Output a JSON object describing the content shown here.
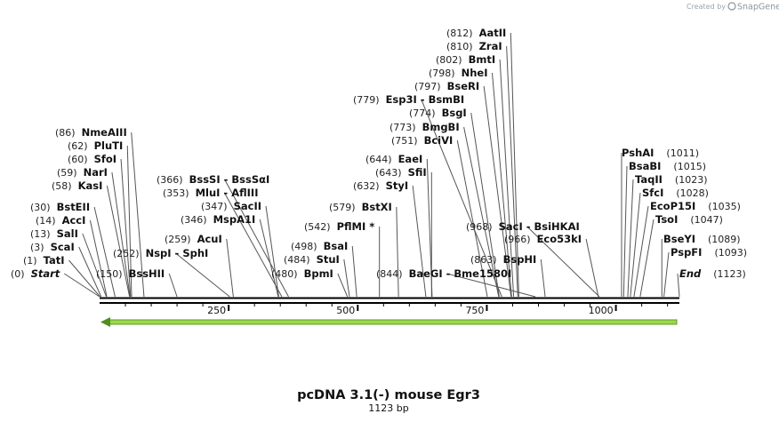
{
  "watermark": {
    "created_by": "Created by",
    "brand": "SnapGene"
  },
  "sequence": {
    "name": "pcDNA 3.1(-) mouse Egr3",
    "length_label": "1123 bp",
    "length": 1123
  },
  "axis": {
    "ticks": [
      "250",
      "500",
      "750",
      "1000"
    ]
  },
  "feature_arrow": {
    "start": 1123,
    "end": 1,
    "direction": "reverse",
    "color": "#9ad84f"
  },
  "sites": [
    {
      "pos": 0,
      "label": "(0)",
      "name": "Start",
      "italic": true
    },
    {
      "pos": 1,
      "label": "(1)",
      "name": "TatI"
    },
    {
      "pos": 3,
      "label": "(3)",
      "name": "ScaI"
    },
    {
      "pos": 13,
      "label": "(13)",
      "name": "SalI"
    },
    {
      "pos": 14,
      "label": "(14)",
      "name": "AccI"
    },
    {
      "pos": 30,
      "label": "(30)",
      "name": "BstEII"
    },
    {
      "pos": 58,
      "label": "(58)",
      "name": "KasI"
    },
    {
      "pos": 59,
      "label": "(59)",
      "name": "NarI"
    },
    {
      "pos": 60,
      "label": "(60)",
      "name": "SfoI"
    },
    {
      "pos": 62,
      "label": "(62)",
      "name": "PluTI"
    },
    {
      "pos": 86,
      "label": "(86)",
      "name": "NmeAIII"
    },
    {
      "pos": 150,
      "label": "(150)",
      "name": "BssHII"
    },
    {
      "pos": 252,
      "label": "(252)",
      "name": "NspI  -  SphI"
    },
    {
      "pos": 259,
      "label": "(259)",
      "name": "AcuI"
    },
    {
      "pos": 346,
      "label": "(346)",
      "name": "MspA1I"
    },
    {
      "pos": 347,
      "label": "(347)",
      "name": "SacII"
    },
    {
      "pos": 353,
      "label": "(353)",
      "name": "MluI  -  AflIII"
    },
    {
      "pos": 366,
      "label": "(366)",
      "name": "BssSI  -  BssSαI"
    },
    {
      "pos": 480,
      "label": "(480)",
      "name": "BpmI"
    },
    {
      "pos": 484,
      "label": "(484)",
      "name": "StuI"
    },
    {
      "pos": 498,
      "label": "(498)",
      "name": "BsaI"
    },
    {
      "pos": 542,
      "label": "(542)",
      "name": "PflMI *"
    },
    {
      "pos": 579,
      "label": "(579)",
      "name": "BstXI"
    },
    {
      "pos": 632,
      "label": "(632)",
      "name": "StyI"
    },
    {
      "pos": 643,
      "label": "(643)",
      "name": "SfiI"
    },
    {
      "pos": 644,
      "label": "(644)",
      "name": "EaeI"
    },
    {
      "pos": 751,
      "label": "(751)",
      "name": "BciVI"
    },
    {
      "pos": 773,
      "label": "(773)",
      "name": "BmgBI"
    },
    {
      "pos": 774,
      "label": "(774)",
      "name": "BsgI"
    },
    {
      "pos": 779,
      "label": "(779)",
      "name": "Esp3I  -  BsmBI"
    },
    {
      "pos": 797,
      "label": "(797)",
      "name": "BseRI"
    },
    {
      "pos": 798,
      "label": "(798)",
      "name": "NheI"
    },
    {
      "pos": 802,
      "label": "(802)",
      "name": "BmtI"
    },
    {
      "pos": 810,
      "label": "(810)",
      "name": "ZraI"
    },
    {
      "pos": 812,
      "label": "(812)",
      "name": "AatII"
    },
    {
      "pos": 844,
      "label": "(844)",
      "name": "BaeGI  -  Bme1580I"
    },
    {
      "pos": 863,
      "label": "(863)",
      "name": "BspHI"
    },
    {
      "pos": 966,
      "label": "(966)",
      "name": "Eco53kI"
    },
    {
      "pos": 968,
      "label": "(968)",
      "name": "SacI  -  BsiHKAI"
    },
    {
      "pos": 1011,
      "label": "(1011)",
      "name": "PshAI"
    },
    {
      "pos": 1015,
      "label": "(1015)",
      "name": "BsaBI"
    },
    {
      "pos": 1023,
      "label": "(1023)",
      "name": "TaqII"
    },
    {
      "pos": 1028,
      "label": "(1028)",
      "name": "SfcI"
    },
    {
      "pos": 1035,
      "label": "(1035)",
      "name": "EcoP15I"
    },
    {
      "pos": 1047,
      "label": "(1047)",
      "name": "TsoI"
    },
    {
      "pos": 1089,
      "label": "(1089)",
      "name": "BseYI"
    },
    {
      "pos": 1093,
      "label": "(1093)",
      "name": "PspFI"
    },
    {
      "pos": 1123,
      "label": "(1123)",
      "name": "End",
      "italic": true
    }
  ]
}
